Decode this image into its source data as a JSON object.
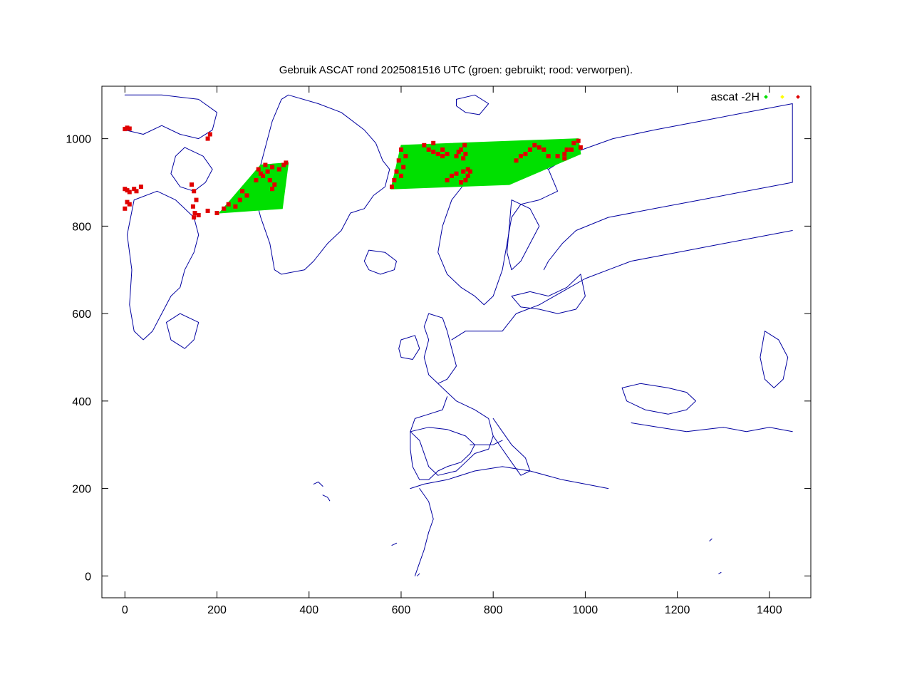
{
  "chart_data": {
    "type": "scatter",
    "title": "Gebruik ASCAT rond 2025081516 UTC (groen: gebruikt; rood: verworpen).",
    "xlabel": "",
    "ylabel": "",
    "xlim": [
      -50,
      1490
    ],
    "ylim": [
      -50,
      1120
    ],
    "x_ticks": [
      0,
      200,
      400,
      600,
      800,
      1000,
      1200,
      1400
    ],
    "y_ticks": [
      0,
      200,
      400,
      600,
      800,
      1000
    ],
    "grid": false,
    "legend": {
      "position": "top-right",
      "label": "ascat -2H"
    },
    "colors": {
      "used": "#00e000",
      "yellow": "#ffff00",
      "rejected": "#e00000",
      "coastline": "#0000a0",
      "frame": "#000000"
    },
    "series": [
      {
        "key": "used",
        "color": "#00e000",
        "swaths": [
          {
            "polygon": [
              [
                205,
                830
              ],
              [
                342,
                840
              ],
              [
                355,
                945
              ],
              [
                295,
                940
              ]
            ]
          },
          {
            "polygon": [
              [
                578,
                885
              ],
              [
                835,
                895
              ],
              [
                990,
                965
              ],
              [
                985,
                1000
              ],
              [
                600,
                985
              ]
            ]
          }
        ]
      },
      {
        "key": "rejected",
        "color": "#e00000",
        "points": [
          [
            0,
            1022
          ],
          [
            5,
            1025
          ],
          [
            10,
            1023
          ],
          [
            0,
            885
          ],
          [
            5,
            882
          ],
          [
            10,
            878
          ],
          [
            20,
            885
          ],
          [
            25,
            880
          ],
          [
            35,
            890
          ],
          [
            5,
            855
          ],
          [
            10,
            850
          ],
          [
            0,
            840
          ],
          [
            145,
            895
          ],
          [
            150,
            880
          ],
          [
            155,
            860
          ],
          [
            148,
            845
          ],
          [
            152,
            830
          ],
          [
            150,
            820
          ],
          [
            160,
            825
          ],
          [
            180,
            835
          ],
          [
            200,
            830
          ],
          [
            215,
            840
          ],
          [
            225,
            850
          ],
          [
            240,
            845
          ],
          [
            250,
            860
          ],
          [
            265,
            870
          ],
          [
            255,
            880
          ],
          [
            285,
            905
          ],
          [
            300,
            915
          ],
          [
            310,
            925
          ],
          [
            305,
            940
          ],
          [
            320,
            935
          ],
          [
            335,
            930
          ],
          [
            345,
            940
          ],
          [
            350,
            945
          ],
          [
            290,
            930
          ],
          [
            295,
            920
          ],
          [
            315,
            905
          ],
          [
            325,
            895
          ],
          [
            320,
            885
          ],
          [
            180,
            1000
          ],
          [
            185,
            1010
          ],
          [
            580,
            890
          ],
          [
            585,
            905
          ],
          [
            590,
            925
          ],
          [
            595,
            950
          ],
          [
            600,
            975
          ],
          [
            610,
            960
          ],
          [
            605,
            935
          ],
          [
            600,
            915
          ],
          [
            650,
            985
          ],
          [
            660,
            975
          ],
          [
            670,
            970
          ],
          [
            680,
            965
          ],
          [
            690,
            960
          ],
          [
            700,
            965
          ],
          [
            690,
            975
          ],
          [
            670,
            990
          ],
          [
            700,
            905
          ],
          [
            710,
            915
          ],
          [
            720,
            920
          ],
          [
            735,
            925
          ],
          [
            745,
            930
          ],
          [
            750,
            925
          ],
          [
            745,
            915
          ],
          [
            740,
            905
          ],
          [
            730,
            900
          ],
          [
            720,
            960
          ],
          [
            725,
            970
          ],
          [
            730,
            975
          ],
          [
            738,
            985
          ],
          [
            740,
            965
          ],
          [
            735,
            955
          ],
          [
            850,
            950
          ],
          [
            860,
            960
          ],
          [
            870,
            965
          ],
          [
            880,
            975
          ],
          [
            890,
            985
          ],
          [
            900,
            980
          ],
          [
            910,
            975
          ],
          [
            920,
            960
          ],
          [
            940,
            960
          ],
          [
            955,
            965
          ],
          [
            960,
            975
          ],
          [
            975,
            990
          ],
          [
            985,
            995
          ],
          [
            990,
            980
          ],
          [
            970,
            975
          ],
          [
            955,
            955
          ]
        ]
      }
    ],
    "annotations": []
  }
}
